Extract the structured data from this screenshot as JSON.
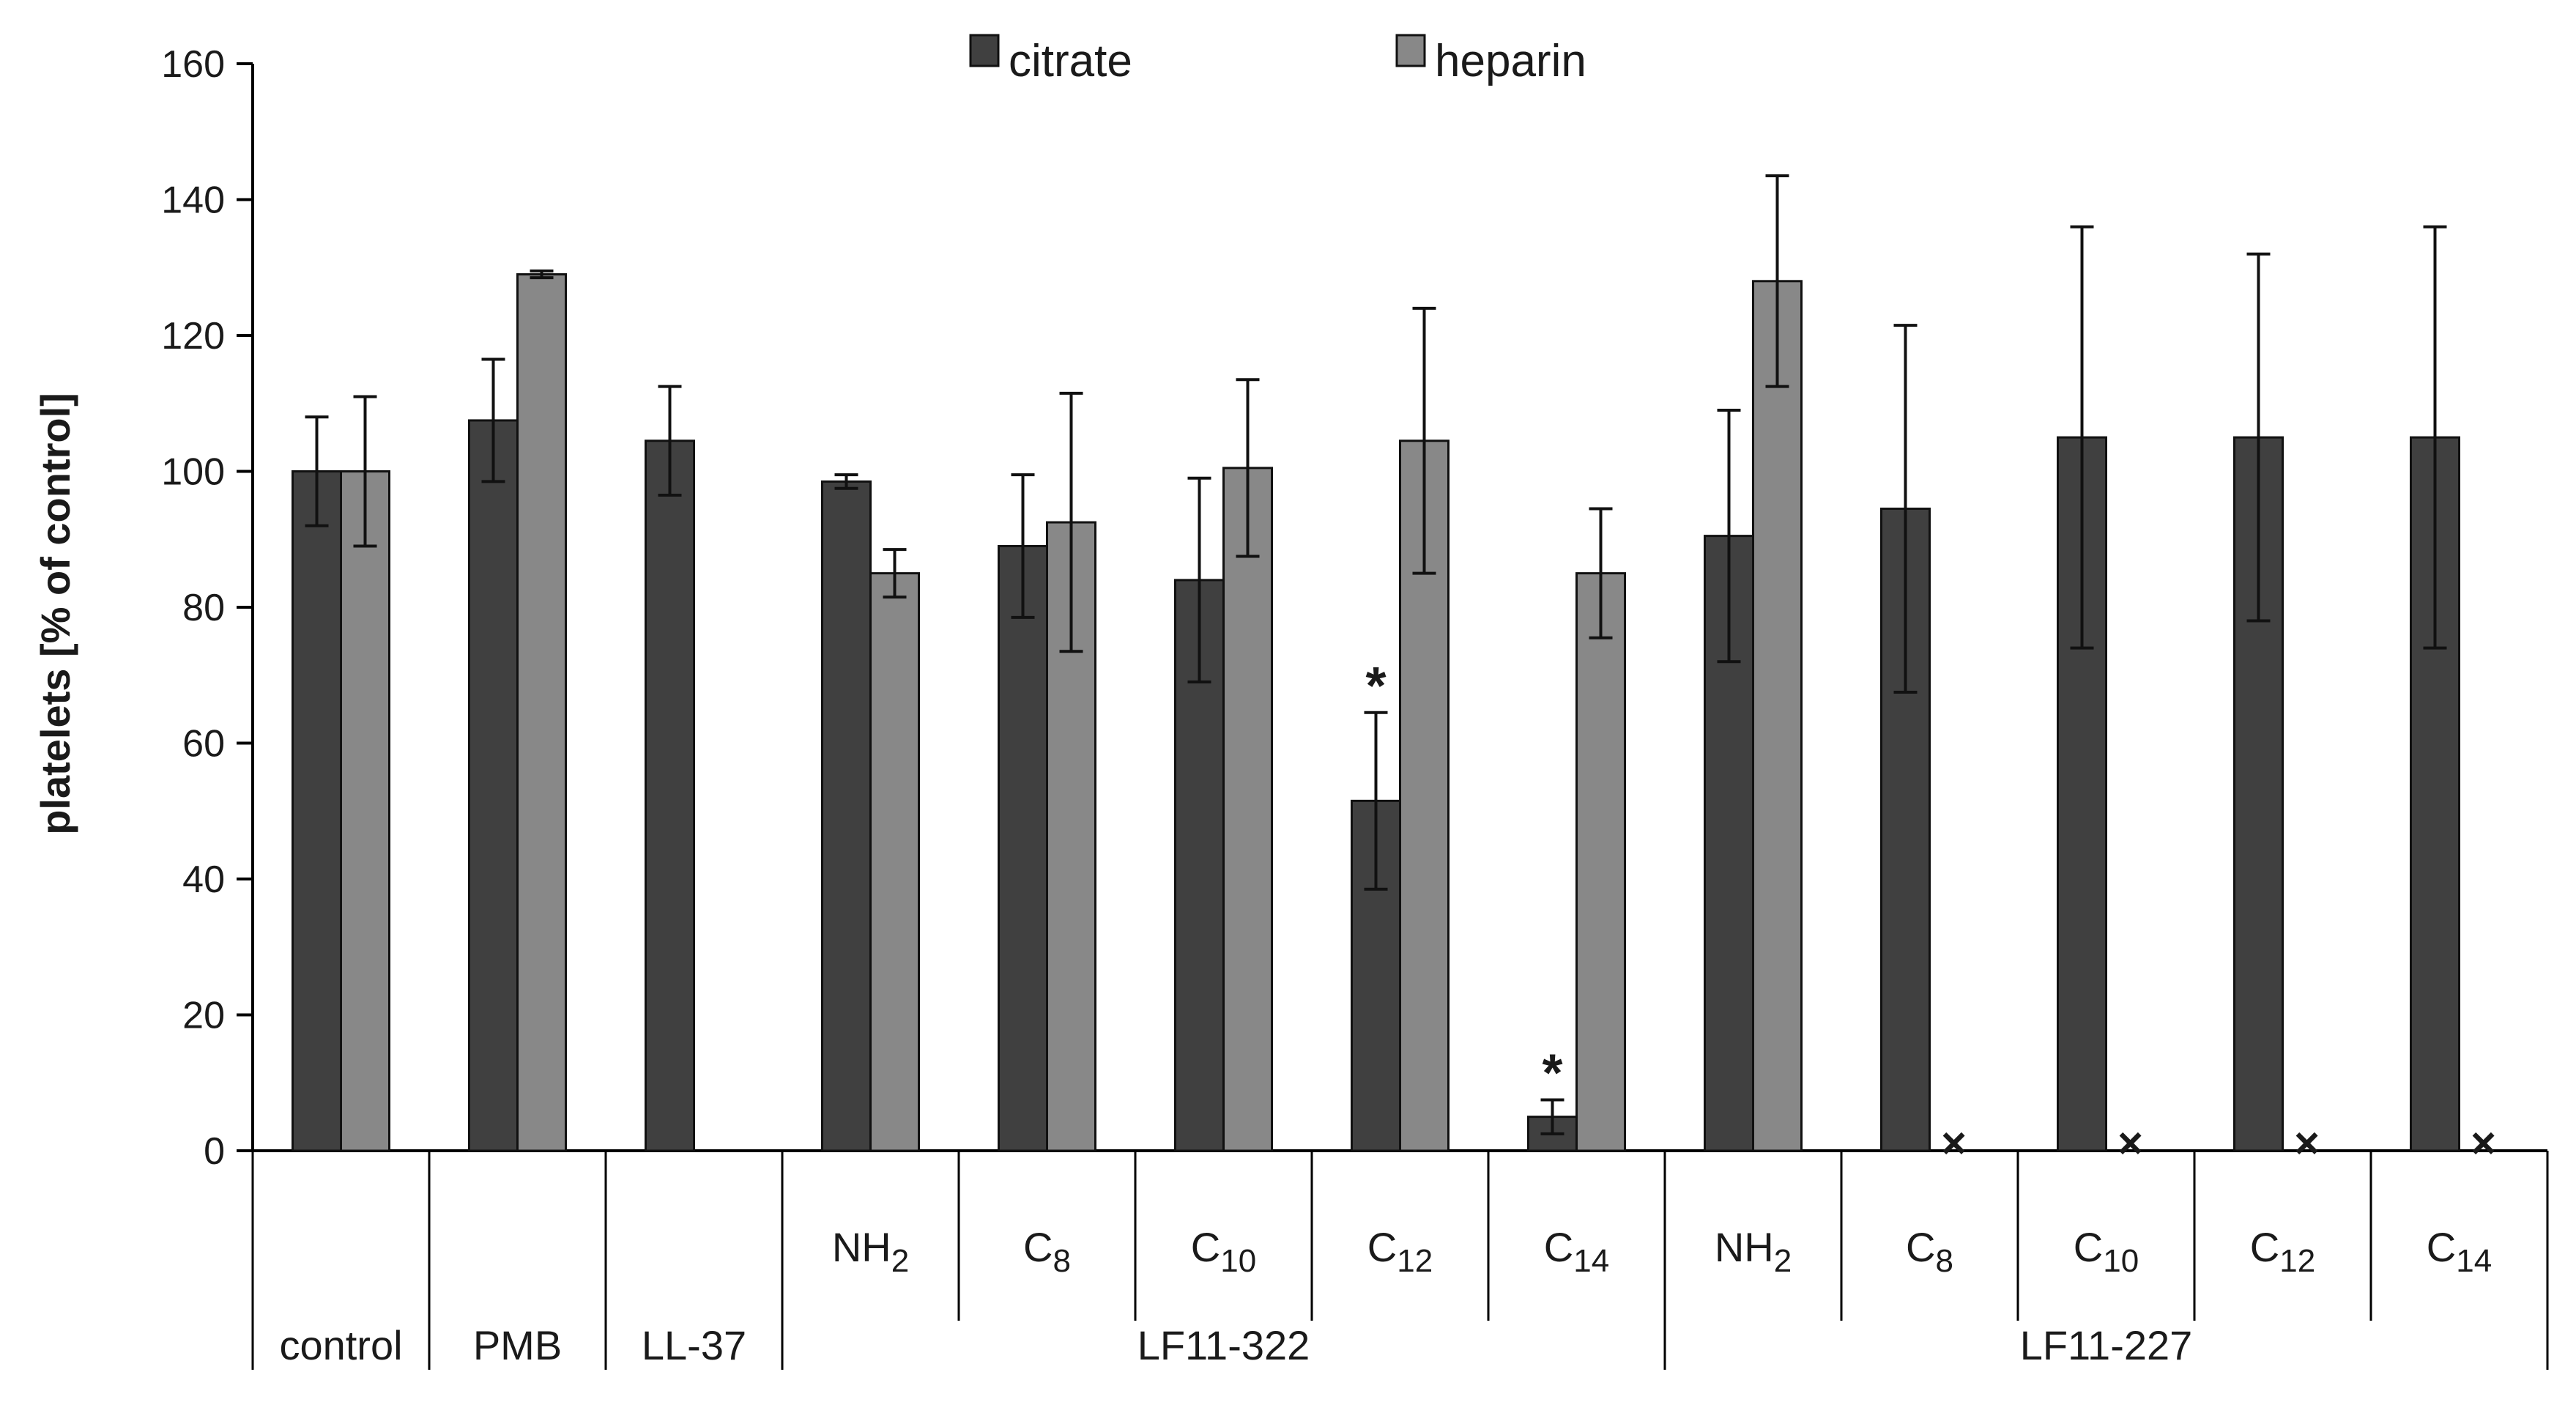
{
  "chart_data": {
    "type": "bar",
    "title": "",
    "xlabel": "",
    "ylabel": "platelets [% of control]",
    "ylim": [
      0,
      160
    ],
    "yticks": [
      "0",
      "20",
      "40",
      "60",
      "80",
      "100",
      "120",
      "140",
      "160"
    ],
    "grid": false,
    "legend_position": "top-center",
    "series": [
      {
        "name": "citrate",
        "color": "#404040",
        "values": [
          100,
          107.5,
          104.5,
          98.5,
          89,
          84,
          51.5,
          5,
          90.5,
          94.5,
          105,
          105,
          105
        ],
        "errors": [
          8,
          9,
          8,
          1,
          10.5,
          15,
          13,
          2.5,
          18.5,
          27,
          31,
          27,
          31
        ]
      },
      {
        "name": "heparin",
        "color": "#888888",
        "values": [
          100,
          129,
          null,
          85,
          92.5,
          100.5,
          104.5,
          85,
          128,
          null,
          null,
          null,
          null
        ],
        "errors": [
          11,
          0.5,
          null,
          3.5,
          19,
          13,
          19.5,
          9.5,
          15.5,
          null,
          null,
          null,
          null
        ]
      }
    ],
    "categories": [
      {
        "main": "",
        "sub": ""
      },
      {
        "main": "",
        "sub": ""
      },
      {
        "main": "",
        "sub": ""
      },
      {
        "main": "NH",
        "sub": "2"
      },
      {
        "main": "C",
        "sub": "8"
      },
      {
        "main": "C",
        "sub": "10"
      },
      {
        "main": "C",
        "sub": "12"
      },
      {
        "main": "C",
        "sub": "14"
      },
      {
        "main": "NH",
        "sub": "2"
      },
      {
        "main": "C",
        "sub": "8"
      },
      {
        "main": "C",
        "sub": "10"
      },
      {
        "main": "C",
        "sub": "12"
      },
      {
        "main": "C",
        "sub": "14"
      }
    ],
    "groups": [
      {
        "label": "control",
        "span": [
          0,
          0
        ]
      },
      {
        "label": "PMB",
        "span": [
          1,
          1
        ]
      },
      {
        "label": "LL-37",
        "span": [
          2,
          2
        ]
      },
      {
        "label": "LF11-322",
        "span": [
          3,
          7
        ]
      },
      {
        "label": "LF11-227",
        "span": [
          8,
          12
        ]
      }
    ],
    "significance": [
      {
        "category_index": 6,
        "series": "citrate",
        "mark": "*"
      },
      {
        "category_index": 7,
        "series": "citrate",
        "mark": "*"
      }
    ],
    "not_determined": {
      "category_indices": [
        9,
        10,
        11,
        12
      ],
      "series": "heparin",
      "mark": "×"
    }
  }
}
